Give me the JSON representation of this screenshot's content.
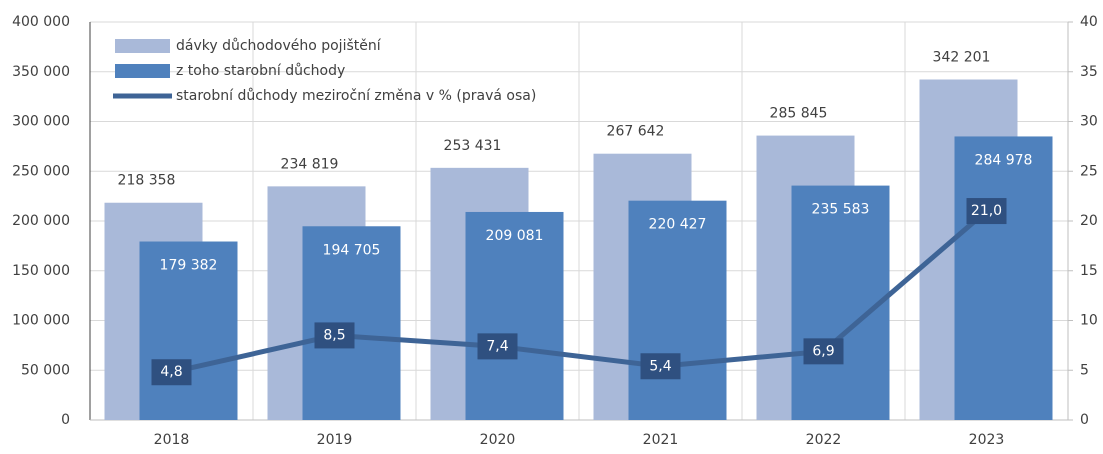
{
  "chart_data": {
    "type": "bar",
    "categories": [
      "2018",
      "2019",
      "2020",
      "2021",
      "2022",
      "2023"
    ],
    "series": [
      {
        "name": "dávky důchodového pojištění",
        "color": "#a9b9d9",
        "values": [
          218358,
          234819,
          253431,
          267642,
          285845,
          342201
        ],
        "value_labels": [
          "218 358",
          "234 819",
          "253 431",
          "267 642",
          "285 845",
          "342 201"
        ]
      },
      {
        "name": "z toho starobní důchody",
        "color": "#4f81bd",
        "values": [
          179382,
          194705,
          209081,
          220427,
          235583,
          284978
        ],
        "value_labels": [
          "179 382",
          "194 705",
          "209 081",
          "220 427",
          "235 583",
          "284 978"
        ]
      },
      {
        "name": "starobní důchody meziroční změna v % (pravá osa)",
        "color": "#3e6496",
        "type": "line",
        "axis": "y2",
        "values": [
          4.8,
          8.5,
          7.4,
          5.4,
          6.9,
          21.0
        ],
        "value_labels": [
          "4,8",
          "8,5",
          "7,4",
          "5,4",
          "6,9",
          "21,0"
        ]
      }
    ],
    "ylim": [
      0,
      400000
    ],
    "yticks": [
      0,
      {
        "value": 50000,
        "label": "50 000"
      },
      {
        "value": 100000,
        "label": "100 000"
      },
      {
        "value": 150000,
        "label": "150 000"
      },
      {
        "value": 200000,
        "label": "200 000"
      },
      {
        "value": 250000,
        "label": "250 000"
      },
      {
        "value": 300000,
        "label": "300 000"
      },
      {
        "value": 350000,
        "label": "350 000"
      },
      {
        "value": 400000,
        "label": "400 000"
      }
    ],
    "y2lim": [
      0,
      40
    ],
    "y2ticks": [
      0,
      5,
      10,
      15,
      20,
      25,
      30,
      35,
      40
    ],
    "grid": true,
    "legend": "top-left"
  }
}
